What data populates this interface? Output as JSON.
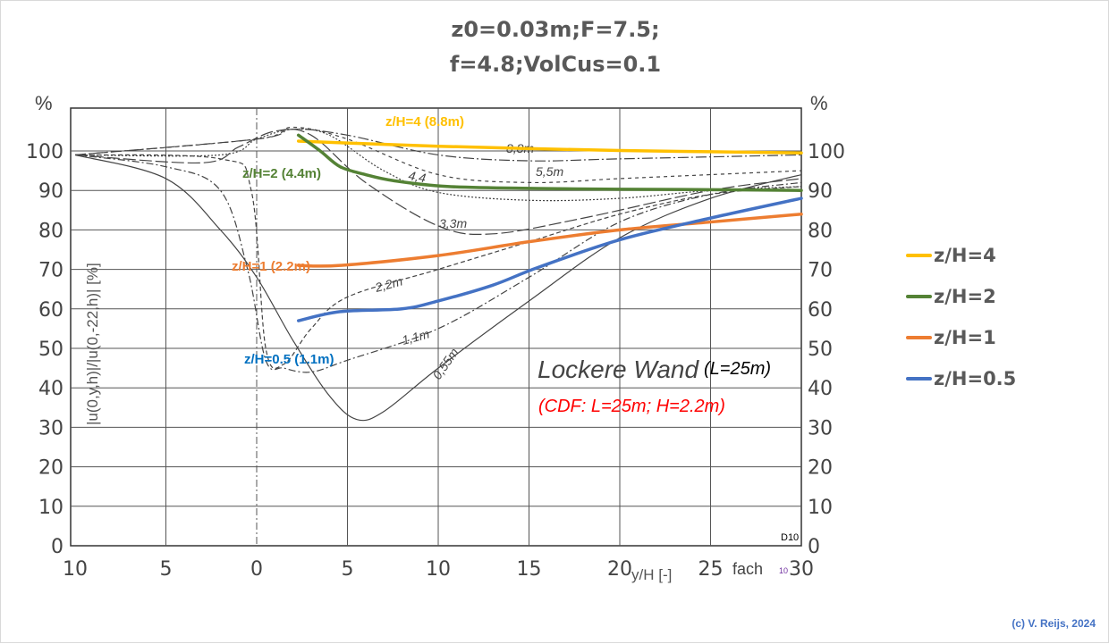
{
  "title": {
    "line1": "z0=0.03m;F=7.5;",
    "line2": "f=4.8;VolCus=0.1"
  },
  "credit": "(c) V. Reijs, 2024",
  "chart_data": {
    "type": "line",
    "title": "z0=0.03m;F=7.5; f=4.8;VolCus=0.1",
    "xlabel": "y/H [-]",
    "ylabel": "|u(0,y,h)|/|u(0,-22,h)| [%]",
    "y_unit_label": "%",
    "xlim": [
      -10,
      30
    ],
    "ylim": [
      0,
      110
    ],
    "x_ticks": [
      -10,
      -5,
      0,
      5,
      10,
      15,
      20,
      25,
      30
    ],
    "x_tick_labels": [
      "10",
      "5",
      "0",
      "5",
      "10",
      "15",
      "20",
      "25",
      "30"
    ],
    "y_ticks": [
      0,
      10,
      20,
      30,
      40,
      50,
      60,
      70,
      80,
      90,
      100
    ],
    "y_tick_labels": [
      "0",
      "10",
      "20",
      "30",
      "40",
      "50",
      "60",
      "70",
      "80",
      "90",
      "100"
    ],
    "grid": true,
    "legend_position": "right",
    "extra_labels": {
      "fach": "fach",
      "fach_sub": "10",
      "corner": "D10"
    },
    "series": [
      {
        "name": "z/H=4",
        "annotation": "z/H=4 (8.8m)",
        "color": "#FFC000",
        "x": [
          2.3,
          5,
          10,
          15,
          20,
          25,
          30
        ],
        "y": [
          102.5,
          102,
          101.2,
          100.6,
          100.1,
          99.8,
          99.5
        ]
      },
      {
        "name": "z/H=2",
        "annotation": "z/H=2 (4.4m)",
        "color": "#548235",
        "x": [
          2.3,
          3.5,
          4.6,
          6,
          7.5,
          10.5,
          15.4,
          20,
          25,
          30
        ],
        "y": [
          104,
          100,
          96,
          94,
          92.5,
          91,
          90.5,
          90.3,
          90.2,
          90
        ]
      },
      {
        "name": "z/H=1",
        "annotation": "z/H=1 (2.2m)",
        "color": "#ED7D31",
        "x": [
          2.3,
          4.6,
          10,
          15,
          20,
          25,
          30
        ],
        "y": [
          71,
          71,
          73.5,
          77,
          80,
          82,
          84
        ]
      },
      {
        "name": "z/H=0.5",
        "annotation": "z/H=0.5 (1.1m)",
        "color": "#4472C4",
        "x": [
          2.3,
          4.6,
          8,
          10,
          13,
          15.5,
          20,
          25,
          30
        ],
        "y": [
          57,
          59.3,
          60,
          62,
          66,
          70.5,
          77.5,
          83,
          88
        ]
      }
    ],
    "background_curves": [
      {
        "label": "0,55m",
        "dash": "",
        "x": [
          -10,
          -5,
          -2,
          0,
          2,
          4,
          5.5,
          7,
          10,
          15,
          20,
          25,
          30
        ],
        "y": [
          99,
          93,
          80,
          68,
          52,
          38,
          32,
          34,
          45,
          62,
          78,
          88,
          94
        ]
      },
      {
        "label": "1,1m",
        "dash": "8 3 2 3",
        "x": [
          -10,
          -5,
          -2,
          -0.5,
          0.5,
          1.5,
          3,
          5,
          10,
          15,
          20,
          25,
          30
        ],
        "y": [
          99,
          96,
          90,
          70,
          47,
          45,
          44,
          47,
          55,
          68,
          82,
          89,
          92
        ]
      },
      {
        "label": "2,2m",
        "dash": "5 3",
        "x": [
          -10,
          -2,
          -0.3,
          0.5,
          1.5,
          3,
          5,
          10,
          15,
          20,
          25,
          30
        ],
        "y": [
          99,
          98,
          90,
          50,
          46,
          55,
          63,
          70,
          77,
          84,
          89,
          91
        ]
      },
      {
        "label": "3,3m",
        "dash": "14 4",
        "x": [
          -10,
          -3,
          -1,
          1,
          3,
          6,
          10,
          13,
          18,
          25,
          30
        ],
        "y": [
          99,
          97,
          101,
          105,
          104,
          92,
          81,
          79,
          83,
          90,
          93
        ]
      },
      {
        "label": "4,4",
        "dash": "2 2",
        "x": [
          -10,
          -2,
          0,
          2,
          4,
          7,
          10,
          15,
          20,
          25,
          30
        ],
        "y": [
          99,
          99,
          103,
          105.5,
          104,
          95,
          89.5,
          87.5,
          88,
          90,
          91
        ]
      },
      {
        "label": "5,5m",
        "dash": "4 4",
        "x": [
          -10,
          0,
          2,
          5,
          10,
          15,
          20,
          25,
          30
        ],
        "y": [
          99,
          103,
          106,
          103,
          94,
          92,
          93,
          94,
          95
        ]
      },
      {
        "label": "8,8m",
        "dash": "12 3 2 3",
        "x": [
          -10,
          0,
          2,
          5,
          10,
          15,
          20,
          30
        ],
        "y": [
          99,
          103,
          105.5,
          104,
          99,
          97.5,
          98,
          99
        ]
      }
    ],
    "annotations": {
      "wall": "Lockere Wand",
      "length": "(L=25m)",
      "cdf": "(CDF: L=25m; H=2.2m)"
    }
  }
}
